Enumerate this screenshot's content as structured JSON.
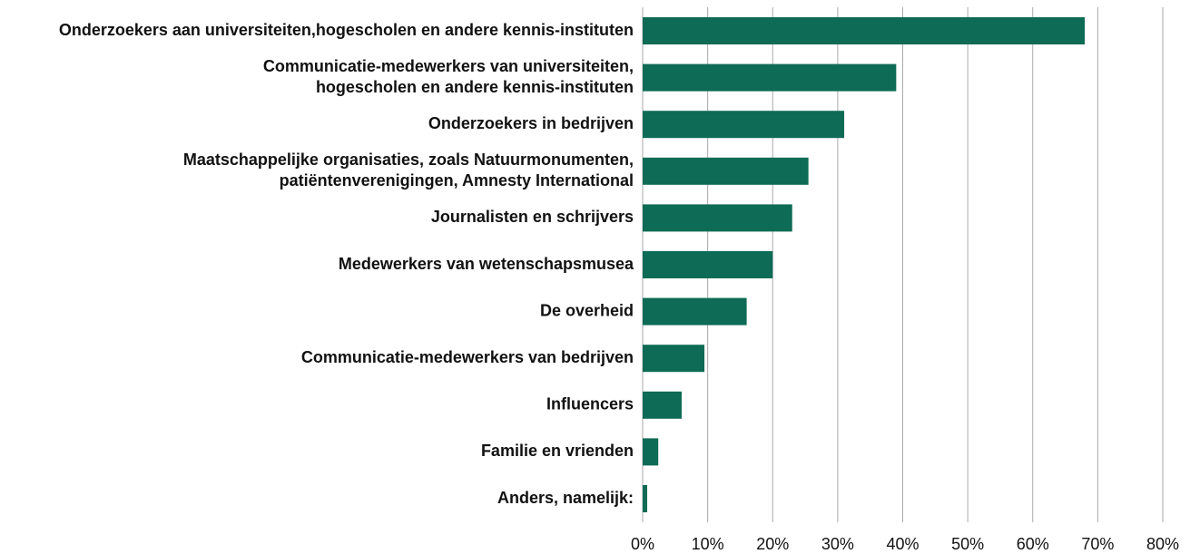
{
  "chart_data": {
    "type": "bar",
    "orientation": "horizontal",
    "categories": [
      "Onderzoekers aan universiteiten,hogescholen en andere kennis-instituten",
      [
        "Communicatie-medewerkers van universiteiten,",
        "hogescholen en andere kennis-instituten"
      ],
      "Onderzoekers in bedrijven",
      [
        "Maatschappelijke organisaties, zoals Natuurmonumenten,",
        "patiëntenverenigingen, Amnesty International"
      ],
      "Journalisten en schrijvers",
      "Medewerkers van wetenschapsmusea",
      "De overheid",
      "Communicatie-medewerkers van bedrijven",
      "Influencers",
      "Familie en vrienden",
      "Anders, namelijk:"
    ],
    "values": [
      68,
      39,
      31,
      25.5,
      23,
      20,
      16,
      9.5,
      6,
      2.4,
      0.7
    ],
    "color": "#0e6b55",
    "xlim": [
      0,
      80
    ],
    "xticks": [
      {
        "value": 0,
        "label": "0%"
      },
      {
        "value": 10,
        "label": "10%"
      },
      {
        "value": 20,
        "label": "20%"
      },
      {
        "value": 30,
        "label": "30%"
      },
      {
        "value": 40,
        "label": "40%"
      },
      {
        "value": 50,
        "label": "50%"
      },
      {
        "value": 60,
        "label": "60%"
      },
      {
        "value": 70,
        "label": "70%"
      },
      {
        "value": 80,
        "label": "80%"
      }
    ],
    "grid": true
  }
}
